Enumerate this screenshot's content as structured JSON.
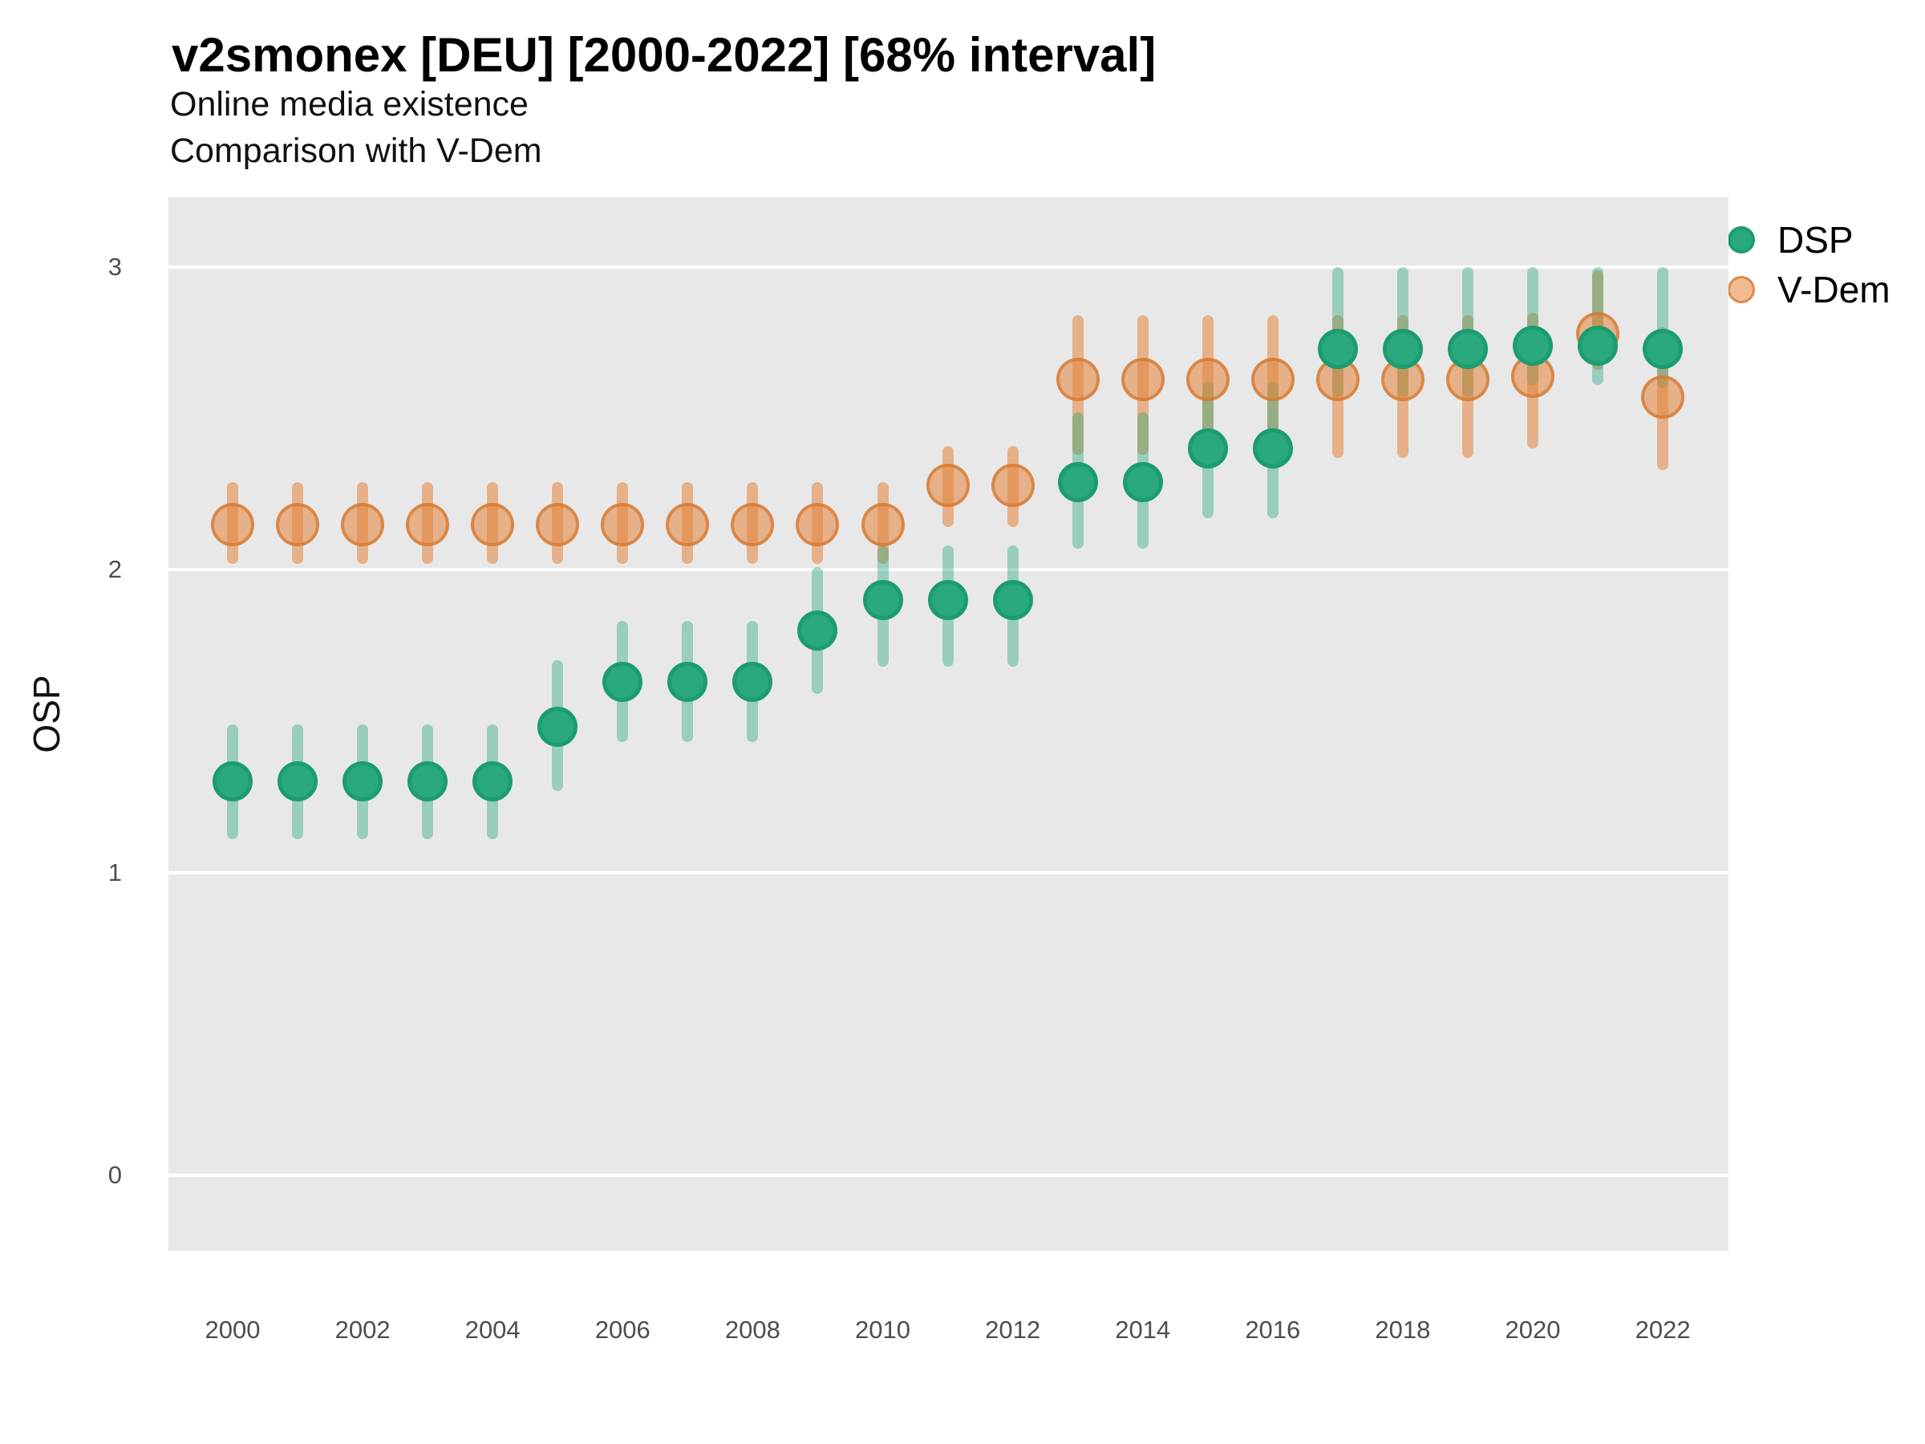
{
  "chart_data": {
    "type": "scatter",
    "variant": "pointrange",
    "title": "v2smonex [DEU] [2000-2022] [68% interval]",
    "subtitle_line1": "Online media existence",
    "subtitle_line2": "Comparison with V-Dem",
    "ylabel": "OSP",
    "xlabel": "",
    "interval_label": "68% interval",
    "country": "DEU",
    "year_range": "2000-2022",
    "x_ticks": [
      "2000",
      "2002",
      "2004",
      "2006",
      "2008",
      "2010",
      "2012",
      "2014",
      "2016",
      "2018",
      "2020",
      "2022"
    ],
    "y_ticks": [
      "0",
      "1",
      "2",
      "3"
    ],
    "ylim": [
      -0.25,
      3.23
    ],
    "xlim": [
      1999,
      2023
    ],
    "grid": "horizontal-major-only",
    "legend_position": "right-top",
    "legend": [
      {
        "id": "dsp",
        "label": "DSP"
      },
      {
        "id": "vdem",
        "label": "V-Dem"
      }
    ],
    "colors": {
      "panel_bg": "#e8e8e8",
      "gridline": "#ffffff",
      "title_text": "#000000",
      "tick_text": "#4d4d4d",
      "dsp_point": "#2aa87e",
      "dsp_point_border": "#1b9c71",
      "dsp_bar": "rgba(42,168,126,0.42)",
      "vdem_point": "rgba(228,132,58,0.55)",
      "vdem_point_border": "rgba(212,120,48,0.75)",
      "vdem_bar": "rgba(228,132,58,0.55)"
    },
    "series": [
      {
        "id": "vdem",
        "name": "V-Dem",
        "points": [
          {
            "year": 2000,
            "est": 2.15,
            "lo": 2.02,
            "hi": 2.29
          },
          {
            "year": 2001,
            "est": 2.15,
            "lo": 2.02,
            "hi": 2.29
          },
          {
            "year": 2002,
            "est": 2.15,
            "lo": 2.02,
            "hi": 2.29
          },
          {
            "year": 2003,
            "est": 2.15,
            "lo": 2.02,
            "hi": 2.29
          },
          {
            "year": 2004,
            "est": 2.15,
            "lo": 2.02,
            "hi": 2.29
          },
          {
            "year": 2005,
            "est": 2.15,
            "lo": 2.02,
            "hi": 2.29
          },
          {
            "year": 2006,
            "est": 2.15,
            "lo": 2.02,
            "hi": 2.29
          },
          {
            "year": 2007,
            "est": 2.15,
            "lo": 2.02,
            "hi": 2.29
          },
          {
            "year": 2008,
            "est": 2.15,
            "lo": 2.02,
            "hi": 2.29
          },
          {
            "year": 2009,
            "est": 2.15,
            "lo": 2.02,
            "hi": 2.29
          },
          {
            "year": 2010,
            "est": 2.15,
            "lo": 2.02,
            "hi": 2.29
          },
          {
            "year": 2011,
            "est": 2.28,
            "lo": 2.14,
            "hi": 2.41
          },
          {
            "year": 2012,
            "est": 2.28,
            "lo": 2.14,
            "hi": 2.41
          },
          {
            "year": 2013,
            "est": 2.63,
            "lo": 2.38,
            "hi": 2.84
          },
          {
            "year": 2014,
            "est": 2.63,
            "lo": 2.38,
            "hi": 2.84
          },
          {
            "year": 2015,
            "est": 2.63,
            "lo": 2.38,
            "hi": 2.84
          },
          {
            "year": 2016,
            "est": 2.63,
            "lo": 2.38,
            "hi": 2.84
          },
          {
            "year": 2017,
            "est": 2.63,
            "lo": 2.37,
            "hi": 2.84
          },
          {
            "year": 2018,
            "est": 2.63,
            "lo": 2.37,
            "hi": 2.84
          },
          {
            "year": 2019,
            "est": 2.63,
            "lo": 2.37,
            "hi": 2.84
          },
          {
            "year": 2020,
            "est": 2.64,
            "lo": 2.4,
            "hi": 2.85
          },
          {
            "year": 2021,
            "est": 2.78,
            "lo": 2.66,
            "hi": 2.99
          },
          {
            "year": 2022,
            "est": 2.57,
            "lo": 2.33,
            "hi": 2.8
          }
        ]
      },
      {
        "id": "dsp",
        "name": "DSP",
        "points": [
          {
            "year": 2000,
            "est": 1.3,
            "lo": 1.11,
            "hi": 1.49
          },
          {
            "year": 2001,
            "est": 1.3,
            "lo": 1.11,
            "hi": 1.49
          },
          {
            "year": 2002,
            "est": 1.3,
            "lo": 1.11,
            "hi": 1.49
          },
          {
            "year": 2003,
            "est": 1.3,
            "lo": 1.11,
            "hi": 1.49
          },
          {
            "year": 2004,
            "est": 1.3,
            "lo": 1.11,
            "hi": 1.49
          },
          {
            "year": 2005,
            "est": 1.48,
            "lo": 1.27,
            "hi": 1.7
          },
          {
            "year": 2006,
            "est": 1.63,
            "lo": 1.43,
            "hi": 1.83
          },
          {
            "year": 2007,
            "est": 1.63,
            "lo": 1.43,
            "hi": 1.83
          },
          {
            "year": 2008,
            "est": 1.63,
            "lo": 1.43,
            "hi": 1.83
          },
          {
            "year": 2009,
            "est": 1.8,
            "lo": 1.59,
            "hi": 2.01
          },
          {
            "year": 2010,
            "est": 1.9,
            "lo": 1.68,
            "hi": 2.08
          },
          {
            "year": 2011,
            "est": 1.9,
            "lo": 1.68,
            "hi": 2.08
          },
          {
            "year": 2012,
            "est": 1.9,
            "lo": 1.68,
            "hi": 2.08
          },
          {
            "year": 2013,
            "est": 2.29,
            "lo": 2.07,
            "hi": 2.52
          },
          {
            "year": 2014,
            "est": 2.29,
            "lo": 2.07,
            "hi": 2.52
          },
          {
            "year": 2015,
            "est": 2.4,
            "lo": 2.17,
            "hi": 2.62
          },
          {
            "year": 2016,
            "est": 2.4,
            "lo": 2.17,
            "hi": 2.62
          },
          {
            "year": 2017,
            "est": 2.73,
            "lo": 2.57,
            "hi": 3.0
          },
          {
            "year": 2018,
            "est": 2.73,
            "lo": 2.57,
            "hi": 3.0
          },
          {
            "year": 2019,
            "est": 2.73,
            "lo": 2.57,
            "hi": 3.0
          },
          {
            "year": 2020,
            "est": 2.74,
            "lo": 2.61,
            "hi": 3.0
          },
          {
            "year": 2021,
            "est": 2.74,
            "lo": 2.61,
            "hi": 3.0
          },
          {
            "year": 2022,
            "est": 2.73,
            "lo": 2.6,
            "hi": 3.0
          }
        ]
      }
    ]
  }
}
